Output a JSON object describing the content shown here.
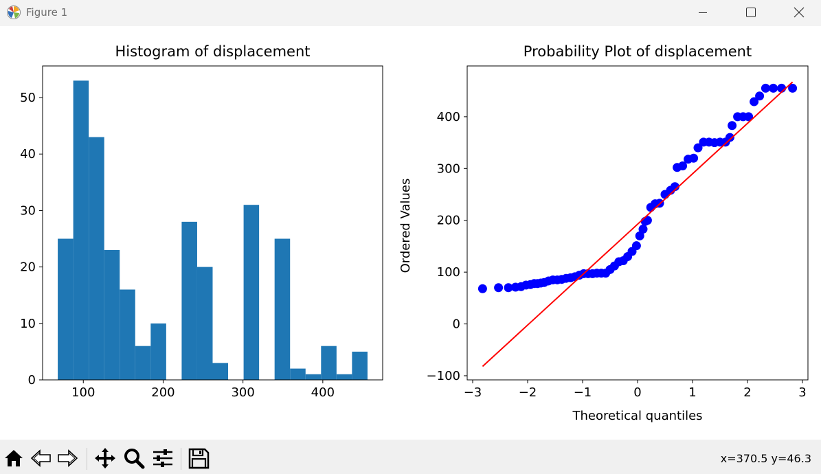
{
  "window": {
    "title": "Figure 1"
  },
  "toolbar": {
    "buttons": [
      {
        "name": "home-icon"
      },
      {
        "name": "back-arrow-icon"
      },
      {
        "name": "forward-arrow-icon"
      },
      {
        "name": "pan-icon"
      },
      {
        "name": "zoom-icon"
      },
      {
        "name": "configure-subplots-icon"
      },
      {
        "name": "save-icon"
      }
    ],
    "coords": "x=370.5 y=46.3"
  },
  "colors": {
    "hist_bar": "#1f77b4",
    "points": "#0000ff",
    "fit_line": "#ff0000"
  },
  "chart_data": [
    {
      "type": "bar",
      "title": "Histogram of displacement",
      "xlabel": "",
      "ylabel": "",
      "bins": [
        [
          68,
          87.4
        ],
        [
          87.4,
          106.8
        ],
        [
          106.8,
          126.2
        ],
        [
          126.2,
          145.6
        ],
        [
          145.6,
          165
        ],
        [
          165,
          184.4
        ],
        [
          184.4,
          203.8
        ],
        [
          203.8,
          223.2
        ],
        [
          223.2,
          242.6
        ],
        [
          242.6,
          262
        ],
        [
          262,
          281.4
        ],
        [
          281.4,
          300.8
        ],
        [
          300.8,
          320.2
        ],
        [
          320.2,
          339.6
        ],
        [
          339.6,
          359
        ],
        [
          359,
          378.4
        ],
        [
          378.4,
          397.8
        ],
        [
          397.8,
          417.2
        ],
        [
          417.2,
          436.6
        ],
        [
          436.6,
          456
        ]
      ],
      "values": [
        25,
        53,
        43,
        23,
        16,
        6,
        10,
        0,
        28,
        20,
        3,
        0,
        31,
        0,
        25,
        2,
        1,
        6,
        1,
        5
      ],
      "xlim": [
        49,
        475
      ],
      "ylim": [
        0,
        55.6
      ],
      "xticks": [
        100,
        200,
        300,
        400
      ],
      "yticks": [
        0,
        10,
        20,
        30,
        40,
        50
      ],
      "grid": false
    },
    {
      "type": "scatter",
      "title": "Probability Plot of displacement",
      "xlabel": "Theoretical quantiles",
      "ylabel": "Ordered Values",
      "xlim": [
        -3.1,
        3.1
      ],
      "ylim": [
        -108,
        498
      ],
      "xticks": [
        -3,
        -2,
        -1,
        0,
        1,
        2,
        3
      ],
      "yticks": [
        -100,
        0,
        100,
        200,
        300,
        400
      ],
      "fit_line": {
        "x": [
          -2.82,
          2.82
        ],
        "y": [
          -82,
          467
        ]
      },
      "points": {
        "x": [
          -2.82,
          -2.53,
          -2.35,
          -2.22,
          -2.12,
          -2.03,
          -1.95,
          -1.88,
          -1.82,
          -1.76,
          -1.7,
          -1.62,
          -1.54,
          -1.46,
          -1.38,
          -1.3,
          -1.22,
          -1.14,
          -1.06,
          -0.98,
          -0.9,
          -0.82,
          -0.74,
          -0.66,
          -0.58,
          -0.5,
          -0.42,
          -0.34,
          -0.26,
          -0.18,
          -0.1,
          -0.02,
          0.04,
          0.1,
          0.14,
          0.18,
          0.24,
          0.32,
          0.4,
          0.5,
          0.6,
          0.68,
          0.72,
          0.82,
          0.92,
          1.02,
          1.1,
          1.2,
          1.3,
          1.4,
          1.5,
          1.6,
          1.68,
          1.72,
          1.82,
          1.92,
          2.02,
          2.12,
          2.22,
          2.33,
          2.47,
          2.62,
          2.82
        ],
        "y": [
          68,
          70,
          70,
          71,
          72,
          75,
          76,
          78,
          78,
          79,
          80,
          83,
          85,
          85,
          86,
          88,
          89,
          91,
          94,
          97,
          97,
          97,
          98,
          98,
          98,
          105,
          112,
          120,
          122,
          130,
          140,
          151,
          170,
          183,
          198,
          200,
          225,
          232,
          233,
          250,
          258,
          265,
          302,
          305,
          318,
          320,
          340,
          351,
          351,
          350,
          351,
          351,
          360,
          383,
          400,
          400,
          400,
          429,
          440,
          455,
          455,
          455,
          455
        ]
      },
      "grid": false
    }
  ]
}
